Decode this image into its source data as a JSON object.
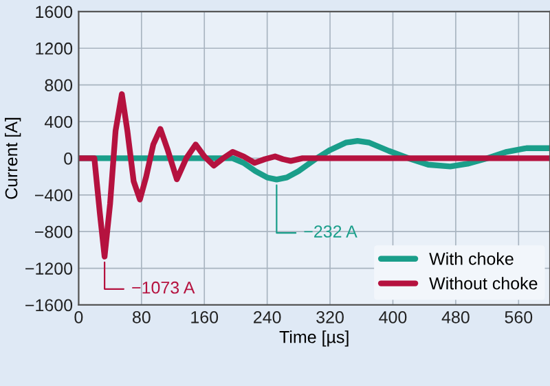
{
  "chart_data": {
    "type": "line",
    "xlabel": "Time [µs]",
    "ylabel": "Current [A]",
    "xlim": [
      0,
      600
    ],
    "ylim": [
      -1600,
      1600
    ],
    "xticks": [
      0,
      80,
      160,
      240,
      320,
      400,
      480,
      560
    ],
    "yticks": [
      -1600,
      -1200,
      -800,
      -400,
      0,
      400,
      800,
      1200,
      1600
    ],
    "grid": true,
    "legend": "bottom right",
    "marker": "none",
    "line_style": "solid",
    "series": [
      {
        "name": "With choke",
        "color": "#1a9e8a",
        "x": [
          0,
          196,
          210,
          225,
          240,
          252,
          265,
          280,
          303,
          320,
          340,
          355,
          370,
          395,
          420,
          445,
          473,
          495,
          520,
          545,
          570,
          600
        ],
        "values": [
          0,
          0,
          -50,
          -140,
          -210,
          -232,
          -210,
          -140,
          0,
          90,
          170,
          190,
          170,
          80,
          0,
          -70,
          -90,
          -60,
          0,
          70,
          110,
          110
        ]
      },
      {
        "name": "Without choke",
        "color": "#b5123f",
        "x": [
          0,
          20,
          27,
          33,
          40,
          47,
          55,
          62,
          70,
          78,
          86,
          95,
          104,
          113,
          125,
          137,
          149,
          160,
          172,
          184,
          196,
          210,
          224,
          237,
          250,
          260,
          270,
          285,
          600
        ],
        "values": [
          0,
          0,
          -600,
          -1073,
          -500,
          300,
          700,
          300,
          -250,
          -450,
          -200,
          150,
          320,
          100,
          -230,
          0,
          150,
          20,
          -80,
          0,
          70,
          20,
          -50,
          -10,
          20,
          -10,
          -30,
          0,
          0
        ]
      }
    ],
    "annotations": [
      {
        "text": "−1073 A",
        "x": 33,
        "y": -1073
      },
      {
        "text": "−232 A",
        "x": 252,
        "y": -232
      }
    ]
  }
}
